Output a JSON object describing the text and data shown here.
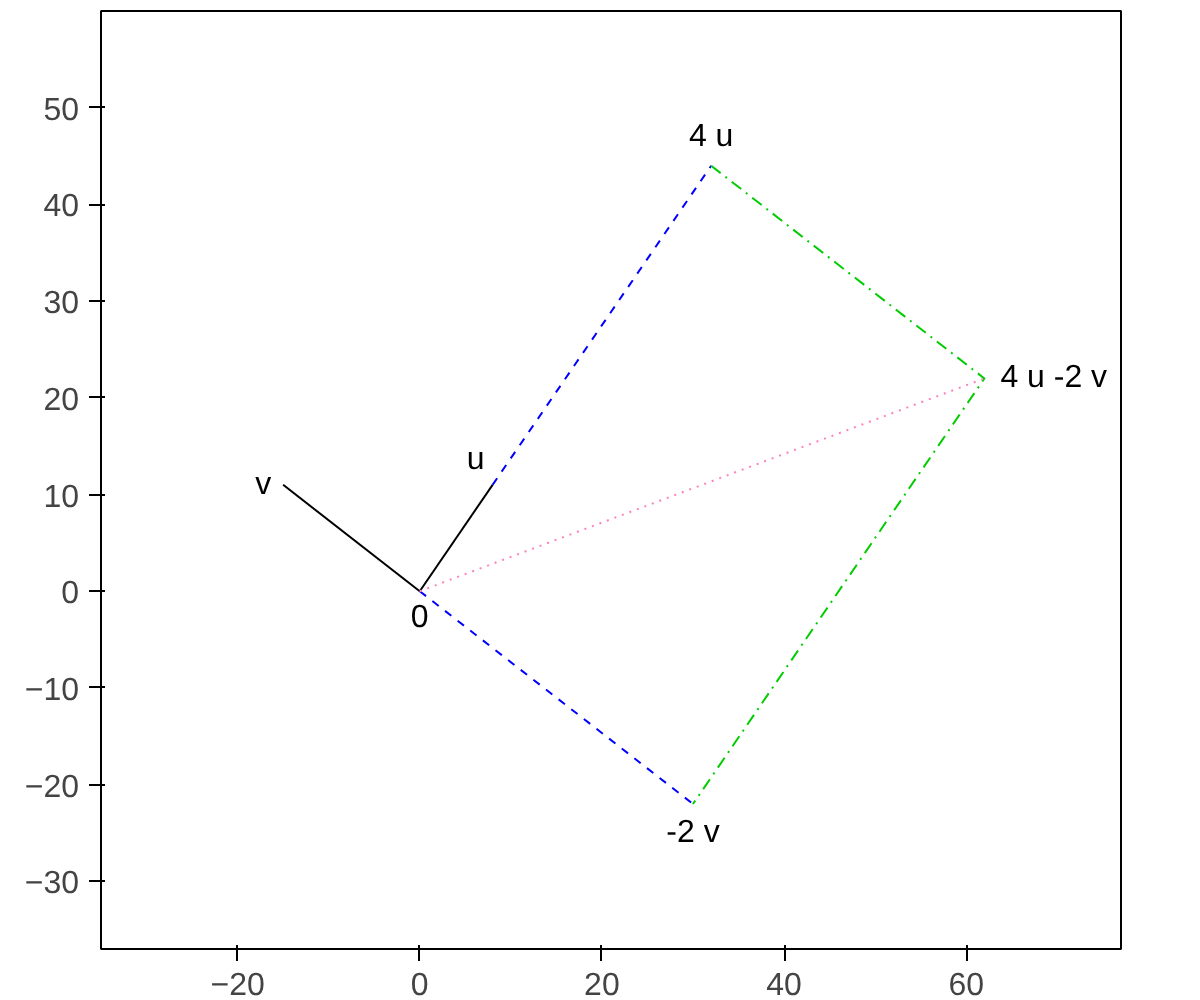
{
  "chart_data": {
    "type": "line",
    "xlim": [
      -35,
      77
    ],
    "ylim": [
      -37,
      60
    ],
    "xticks": [
      -20,
      0,
      20,
      40,
      60
    ],
    "yticks": [
      -30,
      -20,
      -10,
      0,
      10,
      20,
      30,
      40,
      50
    ],
    "grid": false,
    "marker": "none",
    "series": [
      {
        "color": "#000000",
        "x": [
          0,
          8
        ],
        "values": [
          0,
          11
        ],
        "line_style": "solid"
      },
      {
        "color": "#000000",
        "x": [
          0,
          -15
        ],
        "values": [
          0,
          11
        ],
        "line_style": "solid"
      },
      {
        "color": "#0000ff",
        "x": [
          8,
          32,
          null,
          0,
          30
        ],
        "values": [
          11,
          44,
          null,
          0,
          -22
        ],
        "line_style": "dashed"
      },
      {
        "color": "#00cc00",
        "x": [
          32,
          62,
          30
        ],
        "values": [
          44,
          22,
          -22
        ],
        "line_style": "dashdot"
      },
      {
        "color": "#ff80c0",
        "x": [
          0,
          62
        ],
        "values": [
          0,
          22
        ],
        "line_style": "dotted"
      }
    ],
    "annotations": [
      {
        "text": "0",
        "x": 0,
        "y": 0
      },
      {
        "text": "u",
        "x": 8,
        "y": 11
      },
      {
        "text": "v",
        "x": -15,
        "y": 11
      },
      {
        "text": "4 u",
        "x": 32,
        "y": 44
      },
      {
        "text": "4 u -2 v",
        "x": 62,
        "y": 22
      },
      {
        "text": "-2 v",
        "x": 30,
        "y": -22
      }
    ]
  }
}
